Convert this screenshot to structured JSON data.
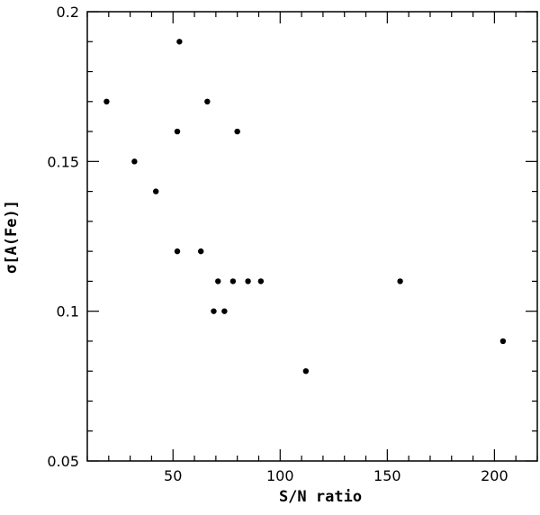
{
  "chart_data": {
    "type": "scatter",
    "title": "",
    "xlabel": "S/N ratio",
    "ylabel": "σ[A(Fe)]",
    "xlim": [
      10,
      220
    ],
    "ylim": [
      0.05,
      0.2
    ],
    "x_major_ticks": [
      50,
      100,
      150,
      200
    ],
    "x_major_tick_labels": [
      "50",
      "100",
      "150",
      "200"
    ],
    "x_minor_step": 10,
    "y_major_ticks": [
      0.05,
      0.1,
      0.15,
      0.2
    ],
    "y_major_tick_labels": [
      "0.05",
      "0.1",
      "0.15",
      "0.2"
    ],
    "y_minor_step": 0.01,
    "grid": false,
    "legend": "none",
    "marker_color": "#000000",
    "points": [
      {
        "x": 19,
        "y": 0.17
      },
      {
        "x": 32,
        "y": 0.15
      },
      {
        "x": 42,
        "y": 0.14
      },
      {
        "x": 52,
        "y": 0.12
      },
      {
        "x": 52,
        "y": 0.16
      },
      {
        "x": 53,
        "y": 0.19
      },
      {
        "x": 63,
        "y": 0.12
      },
      {
        "x": 66,
        "y": 0.17
      },
      {
        "x": 69,
        "y": 0.1
      },
      {
        "x": 71,
        "y": 0.11
      },
      {
        "x": 74,
        "y": 0.1
      },
      {
        "x": 78,
        "y": 0.11
      },
      {
        "x": 80,
        "y": 0.16
      },
      {
        "x": 85,
        "y": 0.11
      },
      {
        "x": 91,
        "y": 0.11
      },
      {
        "x": 112,
        "y": 0.08
      },
      {
        "x": 156,
        "y": 0.11
      },
      {
        "x": 204,
        "y": 0.09
      }
    ]
  }
}
